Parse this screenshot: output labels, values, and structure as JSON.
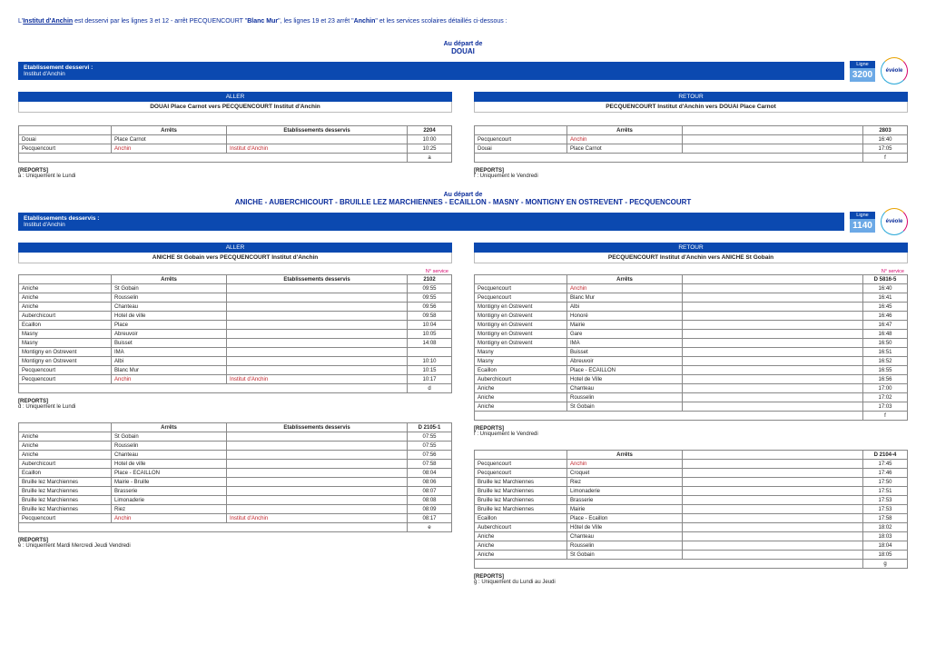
{
  "intro": {
    "prefix": "L'",
    "name": "Institut d'Anchin",
    "mid1": " est desservi par les lignes 3 et 12 - arrêt PECQUENCOURT \"",
    "b1": "Blanc Mur",
    "mid2": "\", les lignes 19 et 23 arrêt \"",
    "b2": "Anchin",
    "end": "\" et les services scolaires détaillés ci-dessous :"
  },
  "section3200": {
    "depart1": "Au départ de",
    "depart2": "DOUAI",
    "etab_label": "Etablissement desservi :",
    "etab_name": "Institut d'Anchin",
    "ligne_label": "Ligne",
    "ligne_num": "3200",
    "logo": "évéole",
    "aller": {
      "dir": "ALLER",
      "route": "DOUAI Place Carnot vers PECQUENCOURT Institut d'Anchin",
      "th": [
        "",
        "Arrêts",
        "Etablissements desservis",
        "2204"
      ],
      "rows": [
        {
          "ville": "Douai",
          "arret": "Place Carnot",
          "etab": "",
          "time": "10:00"
        },
        {
          "ville": "Pecquencourt",
          "arret": "Anchin",
          "arret_red": true,
          "etab": "Institut d'Anchin",
          "etab_red": true,
          "time": "10:25"
        }
      ],
      "footer_code": "a",
      "rep_title": "[REPORTS]",
      "rep_text": "a : Uniquement le Lundi"
    },
    "retour": {
      "dir": "RETOUR",
      "route": "PECQUENCOURT Institut d'Anchin vers DOUAI Place Carnot",
      "th": [
        "",
        "Arrêts",
        "",
        "2803"
      ],
      "rows": [
        {
          "ville": "Pecquencourt",
          "arret": "Anchin",
          "arret_red": true,
          "etab": "",
          "time": "16:40"
        },
        {
          "ville": "Douai",
          "arret": "Place Carnot",
          "etab": "",
          "time": "17:05"
        }
      ],
      "footer_code": "f",
      "rep_title": "[REPORTS]",
      "rep_text": "f : Uniquement le Vendredi"
    }
  },
  "section1140": {
    "depart1": "Au départ de",
    "depart2": "ANICHE - AUBERCHICOURT - BRUILLE LEZ MARCHIENNES - ECAILLON - MASNY - MONTIGNY EN OSTREVENT - PECQUENCOURT",
    "etab_label": "Etablissements desservis :",
    "etab_name": "Institut d'Anchin",
    "ligne_label": "Ligne",
    "ligne_num": "1140",
    "logo": "évéole",
    "aller": {
      "dir": "ALLER",
      "route": "ANICHE St Gobain vers PECQUENCOURT Institut d'Anchin",
      "note1": "N° service",
      "th1": [
        "",
        "Arrêts",
        "Etablissements desservis",
        "2102"
      ],
      "rows1": [
        {
          "ville": "Aniche",
          "arret": "St Gobain",
          "etab": "",
          "time": "09:55"
        },
        {
          "ville": "Aniche",
          "arret": "Rousselin",
          "etab": "",
          "time": "09:55"
        },
        {
          "ville": "Aniche",
          "arret": "Chanteau",
          "etab": "",
          "time": "09:56"
        },
        {
          "ville": "Auberchicourt",
          "arret": "Hotel de ville",
          "etab": "",
          "time": "09:58"
        },
        {
          "ville": "Ecaillon",
          "arret": "Place",
          "etab": "",
          "time": "10:04"
        },
        {
          "ville": "Masny",
          "arret": "Abreuvoir",
          "etab": "",
          "time": "10:05"
        },
        {
          "ville": "Masny",
          "arret": "Buisset",
          "etab": "",
          "time": "14:08"
        },
        {
          "ville": "Montigny en Ostrevent",
          "arret": "IMA",
          "etab": "",
          "time": ""
        },
        {
          "ville": "Montigny en Ostrevent",
          "arret": "Albi",
          "etab": "",
          "time": "10:10"
        },
        {
          "ville": "Pecquencourt",
          "arret": "Blanc Mur",
          "etab": "",
          "time": "10:15"
        },
        {
          "ville": "Pecquencourt",
          "arret": "Anchin",
          "arret_red": true,
          "etab": "Institut d'Anchin",
          "etab_red": true,
          "time": "10:17"
        }
      ],
      "footer1": "d",
      "rep1_title": "[REPORTS]",
      "rep1_text": "d : Uniquement le Lundi",
      "th2": [
        "",
        "Arrêts",
        "Etablissements desservis",
        "D 2105-1"
      ],
      "rows2": [
        {
          "ville": "Aniche",
          "arret": "St Gobain",
          "etab": "",
          "time": "07:55"
        },
        {
          "ville": "Aniche",
          "arret": "Rousselin",
          "etab": "",
          "time": "07:55"
        },
        {
          "ville": "Aniche",
          "arret": "Chanteau",
          "etab": "",
          "time": "07:56"
        },
        {
          "ville": "Auberchicourt",
          "arret": "Hotel de ville",
          "etab": "",
          "time": "07:58"
        },
        {
          "ville": "Ecaillon",
          "arret": "Place - ECAILLON",
          "etab": "",
          "time": "08:04"
        },
        {
          "ville": "Bruille lez Marchiennes",
          "arret": "Mairie - Bruille",
          "etab": "",
          "time": "08:06"
        },
        {
          "ville": "Bruille lez Marchiennes",
          "arret": "Brasserie",
          "etab": "",
          "time": "08:07"
        },
        {
          "ville": "Bruille lez Marchiennes",
          "arret": "Limonaderie",
          "etab": "",
          "time": "08:08"
        },
        {
          "ville": "Bruille lez Marchiennes",
          "arret": "Riez",
          "etab": "",
          "time": "08:09"
        },
        {
          "ville": "Pecquencourt",
          "arret": "Anchin",
          "arret_red": true,
          "etab": "Institut d'Anchin",
          "etab_red": true,
          "time": "08:17"
        }
      ],
      "footer2": "e",
      "rep2_title": "[REPORTS]",
      "rep2_text": "e : Uniquement Mardi Mercredi Jeudi Vendredi"
    },
    "retour": {
      "dir": "RETOUR",
      "route": "PECQUENCOURT Institut d'Anchin vers ANICHE St Gobain",
      "note1": "N° service",
      "th1": [
        "",
        "Arrêts",
        "",
        "D 5816-5"
      ],
      "rows1": [
        {
          "ville": "Pecquencourt",
          "arret": "Anchin",
          "arret_red": true,
          "etab": "",
          "time": "16:40"
        },
        {
          "ville": "Pecquencourt",
          "arret": "Blanc Mur",
          "etab": "",
          "time": "16:41"
        },
        {
          "ville": "Montigny en Ostrevent",
          "arret": "Albi",
          "etab": "",
          "time": "16:45"
        },
        {
          "ville": "Montigny en Ostrevent",
          "arret": "Honoré",
          "etab": "",
          "time": "16:46"
        },
        {
          "ville": "Montigny en Ostrevent",
          "arret": "Mairie",
          "etab": "",
          "time": "16:47"
        },
        {
          "ville": "Montigny en Ostrevent",
          "arret": "Gare",
          "etab": "",
          "time": "16:48"
        },
        {
          "ville": "Montigny en Ostrevent",
          "arret": "IMA",
          "etab": "",
          "time": "16:50"
        },
        {
          "ville": "Masny",
          "arret": "Buisset",
          "etab": "",
          "time": "16:51"
        },
        {
          "ville": "Masny",
          "arret": "Abreuvoir",
          "etab": "",
          "time": "16:52"
        },
        {
          "ville": "Ecaillon",
          "arret": "Place - ECAILLON",
          "etab": "",
          "time": "16:55"
        },
        {
          "ville": "Auberchicourt",
          "arret": "Hotel de Ville",
          "etab": "",
          "time": "16:56"
        },
        {
          "ville": "Aniche",
          "arret": "Chanteau",
          "etab": "",
          "time": "17:00"
        },
        {
          "ville": "Aniche",
          "arret": "Rousselin",
          "etab": "",
          "time": "17:02"
        },
        {
          "ville": "Aniche",
          "arret": "St Gobain",
          "etab": "",
          "time": "17:03"
        }
      ],
      "footer1": "f",
      "rep1_title": "[REPORTS]",
      "rep1_text": "f : Uniquement le Vendredi",
      "th2": [
        "",
        "Arrêts",
        "",
        "D 2104-4"
      ],
      "rows2": [
        {
          "ville": "Pecquencourt",
          "arret": "Anchin",
          "arret_red": true,
          "etab": "",
          "time": "17:45"
        },
        {
          "ville": "Pecquencourt",
          "arret": "Croquet",
          "etab": "",
          "time": "17:46"
        },
        {
          "ville": "Bruille lez Marchiennes",
          "arret": "Riez",
          "etab": "",
          "time": "17:50"
        },
        {
          "ville": "Bruille lez Marchiennes",
          "arret": "Limonaderie",
          "etab": "",
          "time": "17:51"
        },
        {
          "ville": "Bruille lez Marchiennes",
          "arret": "Brasserie",
          "etab": "",
          "time": "17:53"
        },
        {
          "ville": "Bruille lez Marchiennes",
          "arret": "Mairie",
          "etab": "",
          "time": "17:53"
        },
        {
          "ville": "Ecaillon",
          "arret": "Place - Ecaillon",
          "etab": "",
          "time": "17:58"
        },
        {
          "ville": "Auberchicourt",
          "arret": "Hôtel de Ville",
          "etab": "",
          "time": "18:02"
        },
        {
          "ville": "Aniche",
          "arret": "Chanteau",
          "etab": "",
          "time": "18:03"
        },
        {
          "ville": "Aniche",
          "arret": "Rousselin",
          "etab": "",
          "time": "18:04"
        },
        {
          "ville": "Aniche",
          "arret": "St Gobain",
          "etab": "",
          "time": "18:05"
        }
      ],
      "footer2": "g",
      "rep2_title": "[REPORTS]",
      "rep2_text": "g : Uniquement du Lundi au Jeudi"
    }
  }
}
